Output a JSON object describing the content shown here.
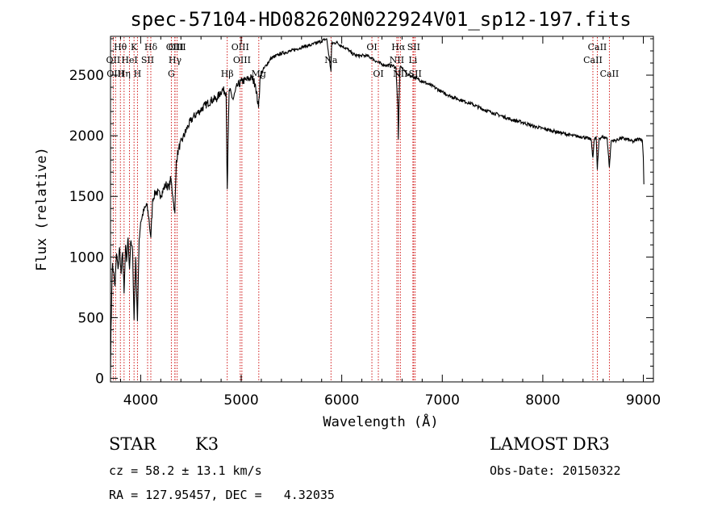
{
  "chart_data": {
    "type": "line",
    "title": "spec-57104-HD082620N022924V01_sp12-197.fits",
    "xlabel": "Wavelength (Å)",
    "ylabel": "Flux (relative)",
    "xlim": [
      3700,
      9100
    ],
    "ylim": [
      -30,
      2820
    ],
    "xticks": [
      4000,
      5000,
      6000,
      7000,
      8000,
      9000
    ],
    "yticks": [
      0,
      500,
      1000,
      1500,
      2000,
      2500
    ],
    "line_color": "#000000",
    "marker_color": "#cc0000",
    "spectrum": {
      "name": "flux",
      "x": [
        3700,
        3705,
        3712,
        3720,
        3730,
        3745,
        3760,
        3775,
        3790,
        3805,
        3820,
        3835,
        3850,
        3860,
        3875,
        3889,
        3900,
        3920,
        3934,
        3950,
        3968,
        3985,
        4000,
        4030,
        4060,
        4080,
        4101,
        4120,
        4150,
        4200,
        4250,
        4280,
        4300,
        4320,
        4340,
        4355,
        4380,
        4420,
        4470,
        4520,
        4580,
        4640,
        4700,
        4760,
        4810,
        4850,
        4861,
        4880,
        4920,
        4960,
        5007,
        5050,
        5100,
        5140,
        5172,
        5190,
        5230,
        5300,
        5400,
        5500,
        5600,
        5700,
        5800,
        5850,
        5893,
        5900,
        5950,
        6000,
        6050,
        6100,
        6150,
        6200,
        6250,
        6300,
        6350,
        6400,
        6450,
        6500,
        6540,
        6560,
        6563,
        6570,
        6580,
        6600,
        6620,
        6650,
        6700,
        6750,
        6800,
        6850,
        6900,
        7000,
        7100,
        7200,
        7300,
        7400,
        7500,
        7600,
        7700,
        7800,
        7900,
        8000,
        8100,
        8200,
        8300,
        8400,
        8480,
        8498,
        8510,
        8530,
        8542,
        8560,
        8600,
        8640,
        8662,
        8680,
        8720,
        8780,
        8840,
        8900,
        8960,
        8990,
        9000,
        9005
      ],
      "y": [
        40,
        420,
        700,
        950,
        880,
        760,
        1030,
        900,
        1080,
        860,
        1040,
        700,
        1100,
        960,
        1160,
        900,
        1120,
        1050,
        480,
        1000,
        470,
        1150,
        1290,
        1380,
        1430,
        1330,
        1160,
        1480,
        1540,
        1510,
        1600,
        1570,
        1650,
        1500,
        1360,
        1800,
        1900,
        1980,
        2080,
        2150,
        2200,
        2250,
        2290,
        2310,
        2380,
        2360,
        1560,
        2380,
        2300,
        2410,
        2450,
        2460,
        2480,
        2430,
        2230,
        2500,
        2560,
        2640,
        2680,
        2700,
        2730,
        2750,
        2780,
        2800,
        2530,
        2760,
        2770,
        2740,
        2720,
        2680,
        2660,
        2660,
        2660,
        2640,
        2610,
        2590,
        2580,
        2580,
        2560,
        2200,
        1970,
        2300,
        2560,
        2560,
        2540,
        2510,
        2490,
        2470,
        2450,
        2430,
        2410,
        2360,
        2320,
        2290,
        2260,
        2220,
        2190,
        2160,
        2130,
        2110,
        2080,
        2060,
        2040,
        2020,
        2000,
        1990,
        1970,
        1820,
        1960,
        1990,
        1720,
        1980,
        1990,
        1980,
        1740,
        1960,
        1960,
        1980,
        1970,
        1950,
        1980,
        1960,
        1820,
        1600
      ]
    },
    "spectral_lines": [
      {
        "name": "Hθ",
        "wavelength": 3798,
        "row": 0
      },
      {
        "name": "OII",
        "wavelength": 3727,
        "row": 1
      },
      {
        "name": "OIII",
        "wavelength": 3750,
        "row": 2
      },
      {
        "name": "Hη",
        "wavelength": 3835,
        "row": 2
      },
      {
        "name": "HeI",
        "wavelength": 3889,
        "row": 1
      },
      {
        "name": "K",
        "wavelength": 3934,
        "row": 0
      },
      {
        "name": "H",
        "wavelength": 3968,
        "row": 2
      },
      {
        "name": "SII",
        "wavelength": 4069,
        "row": 1
      },
      {
        "name": "Hδ",
        "wavelength": 4101,
        "row": 0
      },
      {
        "name": "G",
        "wavelength": 4305,
        "row": 2
      },
      {
        "name": "OIII",
        "wavelength": 4340,
        "row": 0
      },
      {
        "name": "Hγ",
        "wavelength": 4342,
        "row": 1
      },
      {
        "name": "OIII",
        "wavelength": 4363,
        "row": 0
      },
      {
        "name": "Hβ",
        "wavelength": 4861,
        "row": 2
      },
      {
        "name": "OIII",
        "wavelength": 4990,
        "row": 0
      },
      {
        "name": "OIII",
        "wavelength": 5007,
        "row": 1
      },
      {
        "name": "Mg",
        "wavelength": 5175,
        "row": 2
      },
      {
        "name": "Na",
        "wavelength": 5893,
        "row": 1
      },
      {
        "name": "OI",
        "wavelength": 6300,
        "row": 0
      },
      {
        "name": "OI",
        "wavelength": 6364,
        "row": 2
      },
      {
        "name": "NII",
        "wavelength": 6548,
        "row": 1
      },
      {
        "name": "Hα",
        "wavelength": 6563,
        "row": 0
      },
      {
        "name": "NII",
        "wavelength": 6583,
        "row": 2
      },
      {
        "name": "SII",
        "wavelength": 6716,
        "row": 0
      },
      {
        "name": "Li",
        "wavelength": 6708,
        "row": 1
      },
      {
        "name": "SII",
        "wavelength": 6731,
        "row": 2
      },
      {
        "name": "CaII",
        "wavelength": 8498,
        "row": 1
      },
      {
        "name": "CaII",
        "wavelength": 8542,
        "row": 0
      },
      {
        "name": "CaII",
        "wavelength": 8662,
        "row": 2
      }
    ]
  },
  "info": {
    "class": "STAR",
    "subclass": "K3",
    "survey": "LAMOST DR3",
    "cz": "cz = 58.2 ± 13.1 km/s",
    "obs_date": "Obs-Date: 20150322",
    "coords": "RA = 127.95457, DEC =   4.32035"
  }
}
